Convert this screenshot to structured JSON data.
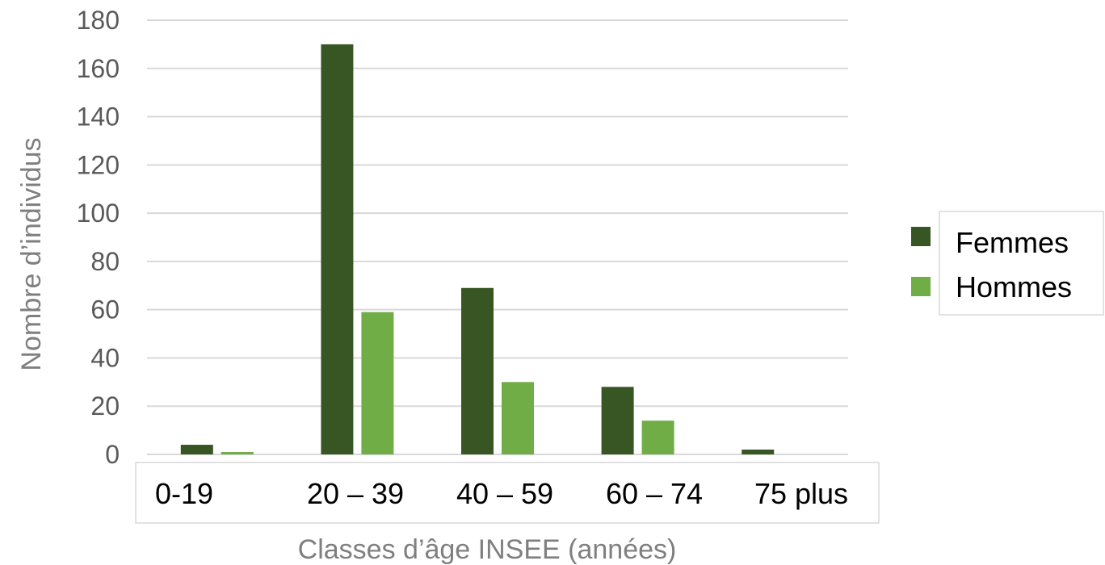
{
  "chart_data": {
    "type": "bar",
    "categories": [
      "0-19",
      "20 – 39",
      "40 – 59",
      "60 – 74",
      "75 plus"
    ],
    "series": [
      {
        "name": "Femmes",
        "values": [
          4,
          170,
          69,
          28,
          2
        ],
        "color": "#375623"
      },
      {
        "name": "Hommes",
        "values": [
          1,
          59,
          30,
          14,
          0
        ],
        "color": "#70ad47"
      }
    ],
    "xlabel": "Classes d’âge INSEE (années)",
    "ylabel": "Nombre d’individus",
    "ylim": [
      0,
      180
    ],
    "yticks": [
      0,
      20,
      40,
      60,
      80,
      100,
      120,
      140,
      160,
      180
    ],
    "grid": true,
    "legend_position": "right"
  }
}
